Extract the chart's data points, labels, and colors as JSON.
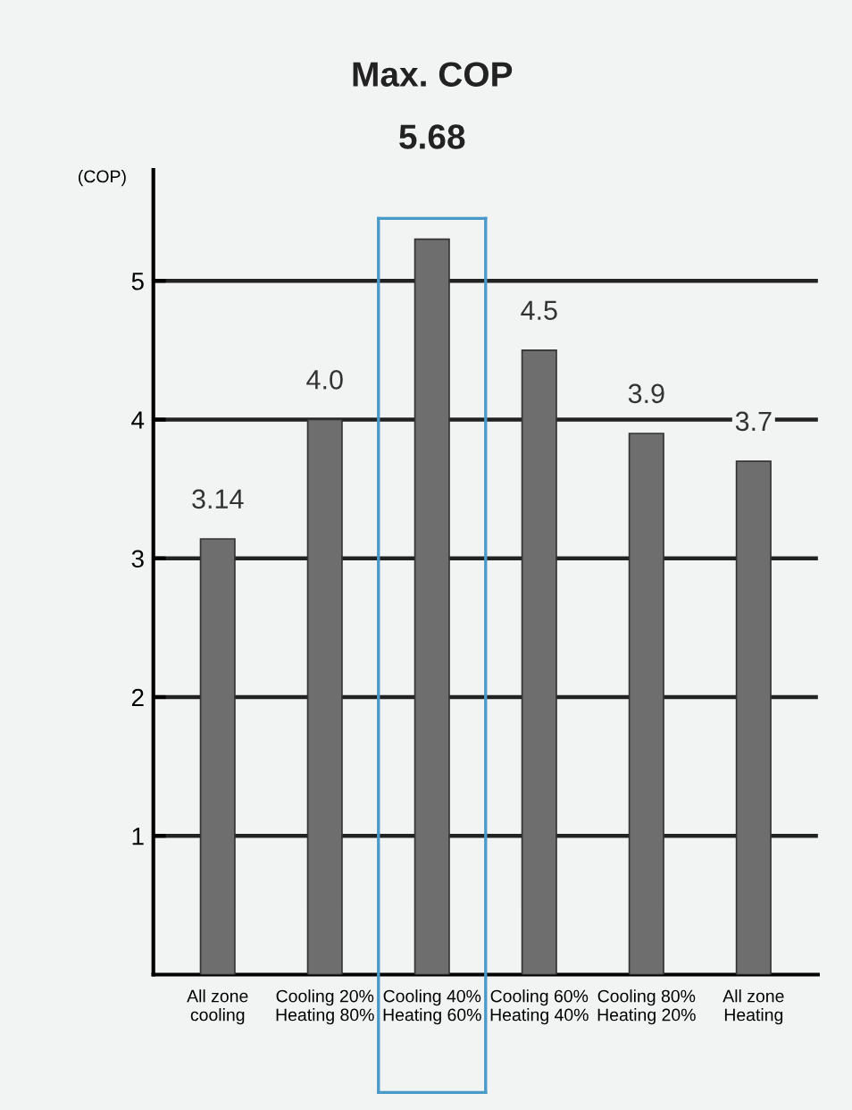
{
  "chart_data": {
    "type": "bar",
    "title": "Max. COP",
    "subtitle": "5.68",
    "ylabel": "(COP)",
    "categories": [
      "All zone\ncooling",
      "Cooling 20%\nHeating 80%",
      "Cooling 40%\nHeating 60%",
      "Cooling 60%\nHeating 40%",
      "Cooling 80%\nHeating 20%",
      "All zone\nHeating"
    ],
    "values": [
      3.14,
      4.0,
      5.3,
      4.5,
      3.9,
      3.7
    ],
    "value_labels": [
      "3.14",
      "4.0",
      null,
      "4.5",
      "3.9",
      "3.7"
    ],
    "color": "#6e6e6e",
    "ylim": [
      0,
      5.8
    ],
    "yticks": [
      1,
      2,
      3,
      4,
      5
    ],
    "grid": "y"
  }
}
